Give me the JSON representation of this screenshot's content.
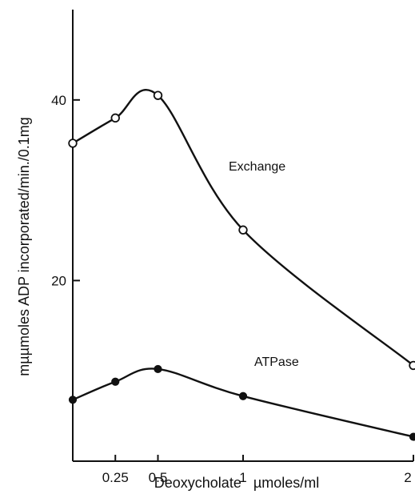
{
  "chart_data": {
    "type": "line",
    "title": "",
    "xlabel": "Deoxycholate   µmoles/ml",
    "ylabel": "mµµmoles ADP incorporated/min./0.1mg",
    "xlim": [
      0,
      2
    ],
    "ylim": [
      0,
      50
    ],
    "x_ticks": [
      0.25,
      0.5,
      1,
      2
    ],
    "x_tick_labels": [
      "0.25",
      "0.5",
      "1",
      "2"
    ],
    "y_ticks": [
      20,
      40
    ],
    "y_tick_labels": [
      "20",
      "40"
    ],
    "grid": false,
    "legend": "none",
    "series": [
      {
        "name": "Exchange",
        "marker": "open-circle",
        "x": [
          0,
          0.25,
          0.5,
          1,
          2
        ],
        "y": [
          35.2,
          38.0,
          40.5,
          25.6,
          10.6
        ]
      },
      {
        "name": "ATPase",
        "marker": "filled-circle",
        "x": [
          0,
          0.25,
          0.5,
          1,
          2
        ],
        "y": [
          6.8,
          8.8,
          10.2,
          7.2,
          2.7
        ]
      }
    ]
  }
}
